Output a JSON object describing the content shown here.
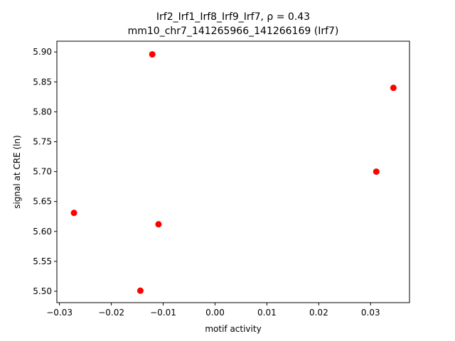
{
  "chart_data": {
    "type": "scatter",
    "title_line1": "Irf2_Irf1_Irf8_Irf9_Irf7, ρ = 0.43",
    "title_line2": "mm10_chr7_141265966_141266169 (Irf7)",
    "xlabel": "motif activity",
    "ylabel": "signal at CRE (ln)",
    "xlim": [
      -0.0305,
      0.0375
    ],
    "ylim": [
      5.481,
      5.918
    ],
    "xticks": [
      -0.03,
      -0.02,
      -0.01,
      0.0,
      0.01,
      0.02,
      0.03
    ],
    "xtick_labels": [
      "−0.03",
      "−0.02",
      "−0.01",
      "0.00",
      "0.01",
      "0.02",
      "0.03"
    ],
    "yticks": [
      5.5,
      5.55,
      5.6,
      5.65,
      5.7,
      5.75,
      5.8,
      5.85,
      5.9
    ],
    "ytick_labels": [
      "5.50",
      "5.55",
      "5.60",
      "5.65",
      "5.70",
      "5.75",
      "5.80",
      "5.85",
      "5.90"
    ],
    "grid": false,
    "legend": "none",
    "marker_color": "#ff0000",
    "points": [
      {
        "x": -0.0121,
        "y": 5.896
      },
      {
        "x": 0.0344,
        "y": 5.84
      },
      {
        "x": 0.0311,
        "y": 5.7
      },
      {
        "x": -0.0272,
        "y": 5.631
      },
      {
        "x": -0.0109,
        "y": 5.612
      },
      {
        "x": -0.0144,
        "y": 5.501
      }
    ]
  }
}
